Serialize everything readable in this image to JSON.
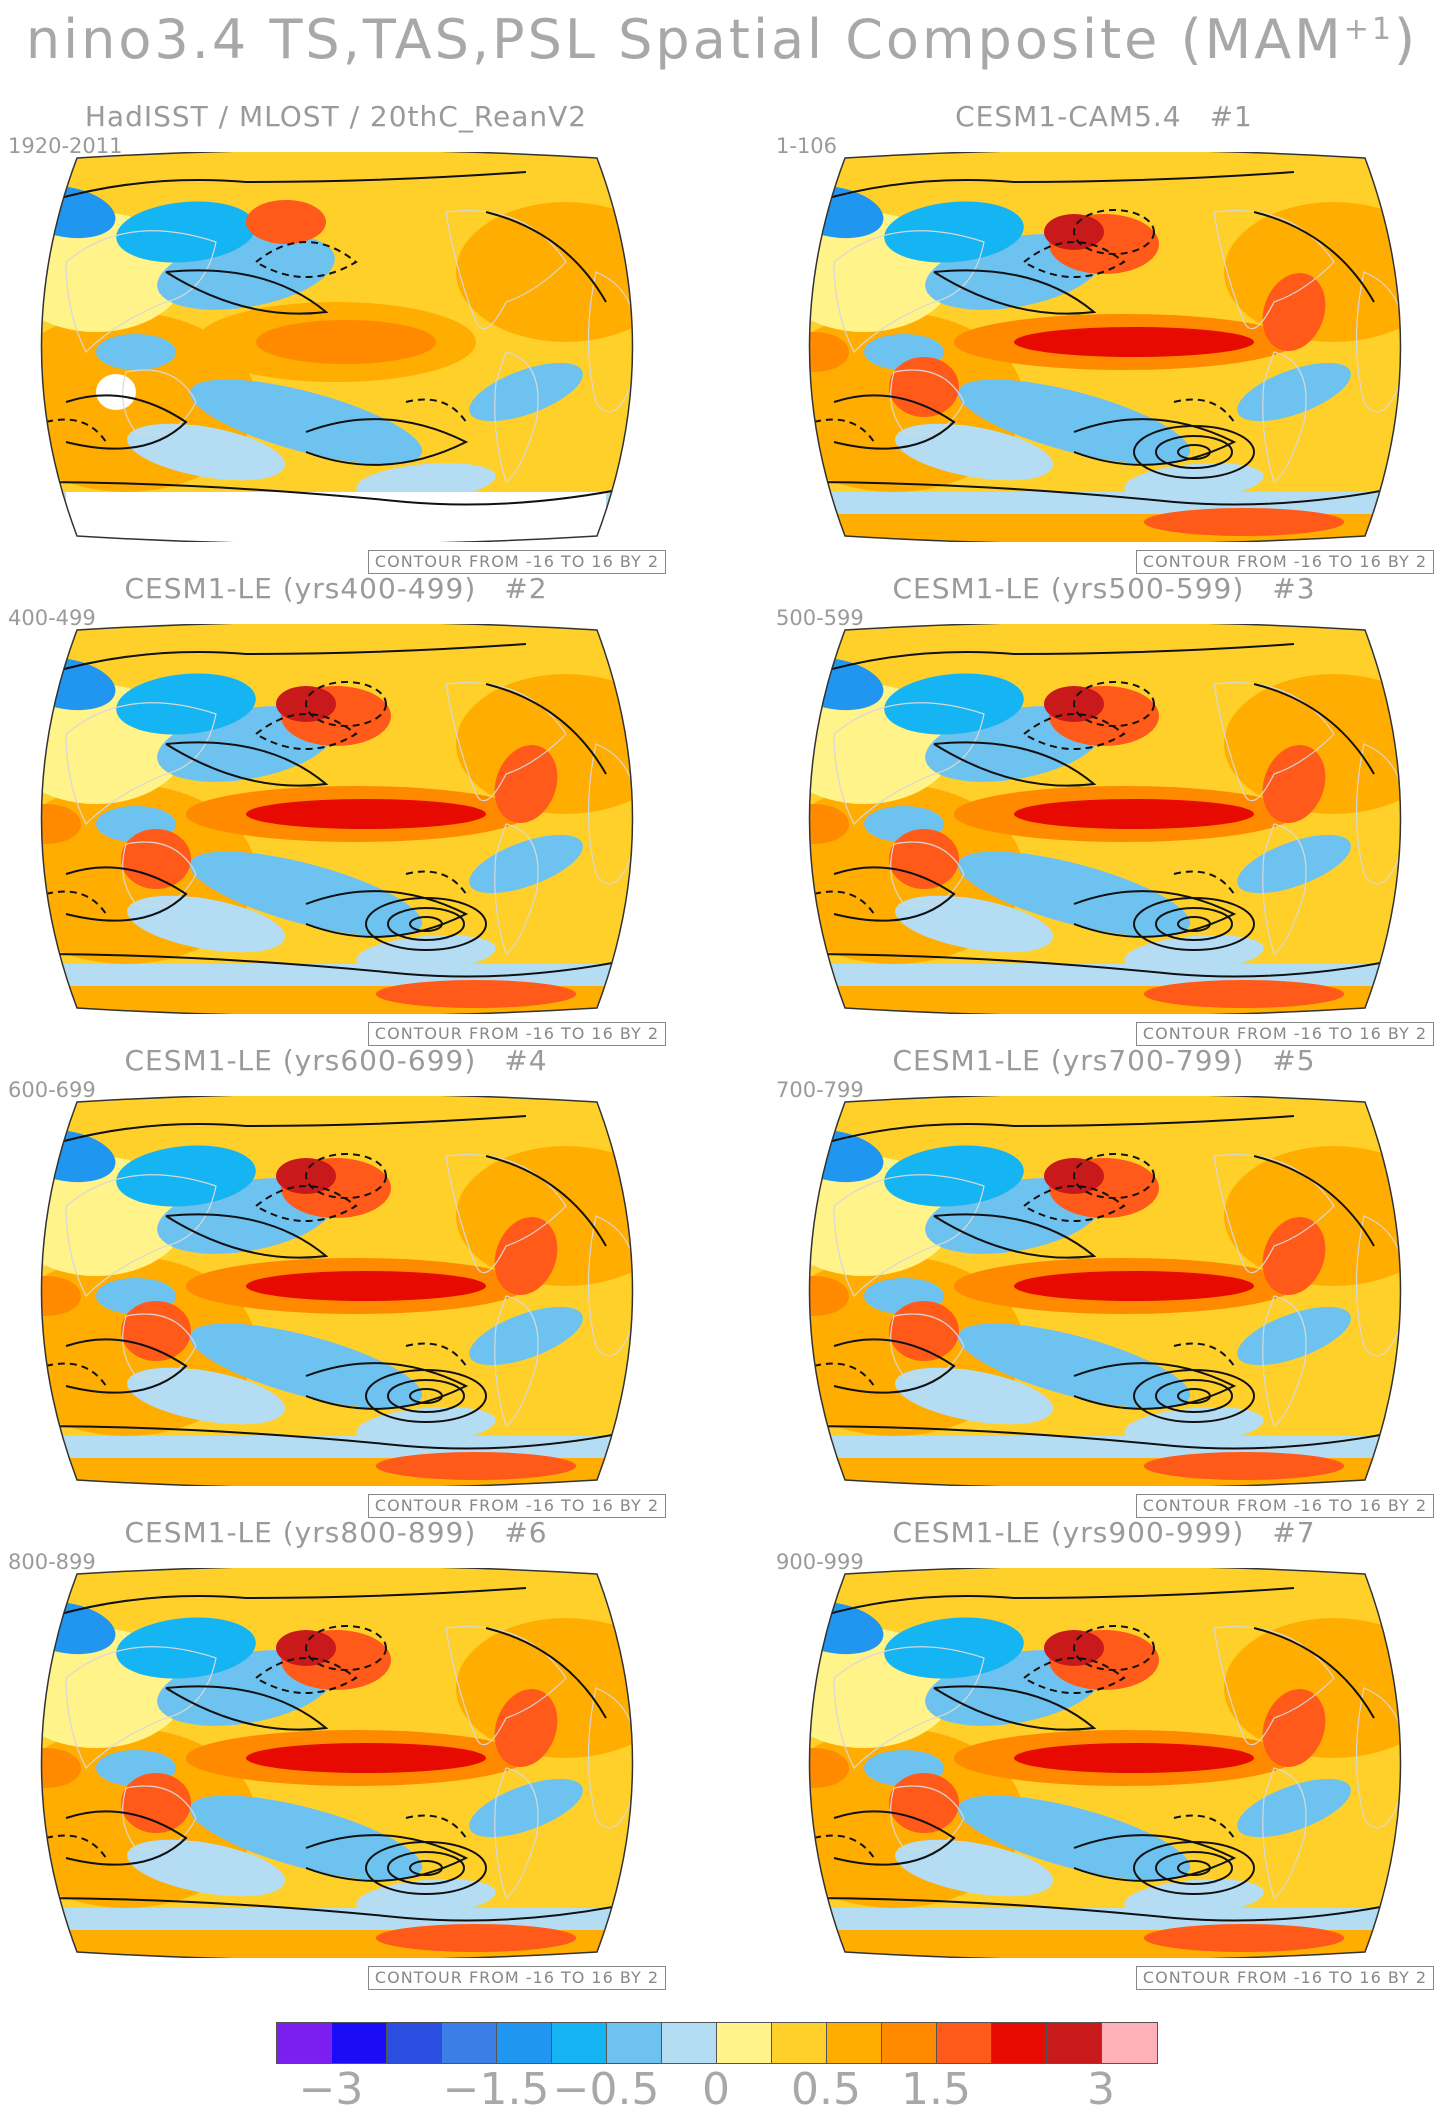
{
  "figure": {
    "title_prefix": "nino3.4 TS,TAS,PSL Spatial Composite (MAM",
    "title_superscript": "+1",
    "title_suffix": ")"
  },
  "panels": [
    {
      "title": "HadISST / MLOST / 20thC_ReanV2",
      "number": "",
      "years": "1920-2011",
      "contour": "CONTOUR FROM -16 TO 16 BY 2",
      "variant": "obs"
    },
    {
      "title": "CESM1-CAM5.4",
      "number": "#1",
      "years": "1-106",
      "contour": "CONTOUR FROM -16 TO 16 BY 2",
      "variant": "model"
    },
    {
      "title": "CESM1-LE (yrs400-499)",
      "number": "#2",
      "years": "400-499",
      "contour": "CONTOUR FROM -16 TO 16 BY 2",
      "variant": "model"
    },
    {
      "title": "CESM1-LE (yrs500-599)",
      "number": "#3",
      "years": "500-599",
      "contour": "CONTOUR FROM -16 TO 16 BY 2",
      "variant": "model"
    },
    {
      "title": "CESM1-LE (yrs600-699)",
      "number": "#4",
      "years": "600-699",
      "contour": "CONTOUR FROM -16 TO 16 BY 2",
      "variant": "model"
    },
    {
      "title": "CESM1-LE (yrs700-799)",
      "number": "#5",
      "years": "700-799",
      "contour": "CONTOUR FROM -16 TO 16 BY 2",
      "variant": "model"
    },
    {
      "title": "CESM1-LE (yrs800-899)",
      "number": "#6",
      "years": "800-899",
      "contour": "CONTOUR FROM -16 TO 16 BY 2",
      "variant": "model"
    },
    {
      "title": "CESM1-LE (yrs900-999)",
      "number": "#7",
      "years": "900-999",
      "contour": "CONTOUR FROM -16 TO 16 BY 2",
      "variant": "model"
    }
  ],
  "colorbar": {
    "colors": [
      "#7b1ff0",
      "#1a0df5",
      "#2a4fe0",
      "#3a7ee8",
      "#2196f0",
      "#15b4f2",
      "#6ec2f0",
      "#b4dcf2",
      "#fff38a",
      "#ffd02a",
      "#ffad00",
      "#ff8a00",
      "#ff5a1a",
      "#e60a00",
      "#c81a1a",
      "#ffb0b8"
    ],
    "labels": [
      {
        "text": "−3",
        "boundary": 1
      },
      {
        "text": "−1.5",
        "boundary": 4
      },
      {
        "text": "−0.5",
        "boundary": 6
      },
      {
        "text": "0",
        "boundary": 8
      },
      {
        "text": "0.5",
        "boundary": 10
      },
      {
        "text": "1.5",
        "boundary": 12
      },
      {
        "text": "3",
        "boundary": 15
      }
    ]
  }
}
